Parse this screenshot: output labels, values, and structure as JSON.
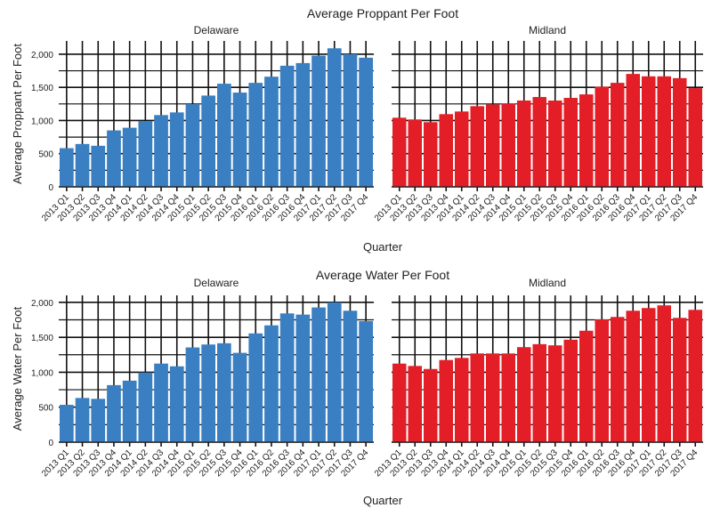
{
  "chart_data": [
    {
      "type": "bar",
      "title": "Average Proppant Per Foot",
      "xlabel": "Quarter",
      "ylabel": "Average Proppant Per Foot",
      "ylim": [
        0,
        2200
      ],
      "yticks": [
        0,
        500,
        1000,
        1500,
        2000
      ],
      "ytick_labels": [
        "0",
        "500",
        "1,000",
        "1,500",
        "2,000"
      ],
      "grid": true,
      "categories": [
        "2013 Q1",
        "2013 Q2",
        "2013 Q3",
        "2013 Q4",
        "2014 Q1",
        "2014 Q2",
        "2014 Q3",
        "2014 Q4",
        "2015 Q1",
        "2015 Q2",
        "2015 Q3",
        "2015 Q4",
        "2016 Q1",
        "2016 Q2",
        "2016 Q3",
        "2016 Q4",
        "2017 Q1",
        "2017 Q2",
        "2017 Q3",
        "2017 Q4"
      ],
      "panels": [
        {
          "name": "Delaware",
          "color": "#3a7fc1",
          "values": [
            583,
            646,
            619,
            851,
            891,
            993,
            1082,
            1122,
            1247,
            1376,
            1555,
            1421,
            1568,
            1661,
            1826,
            1866,
            1978,
            2089,
            2000,
            1947
          ]
        },
        {
          "name": "Midland",
          "color": "#e31e26",
          "values": [
            1042,
            1016,
            975,
            1096,
            1136,
            1216,
            1243,
            1256,
            1301,
            1354,
            1301,
            1341,
            1394,
            1510,
            1568,
            1702,
            1666,
            1666,
            1639,
            1488
          ]
        }
      ]
    },
    {
      "type": "bar",
      "title": "Average Water Per Foot",
      "xlabel": "Quarter",
      "ylabel": "Average Water Per Foot",
      "ylim": [
        0,
        2100
      ],
      "yticks": [
        0,
        500,
        1000,
        1500,
        2000
      ],
      "ytick_labels": [
        "0",
        "500",
        "1,000",
        "1,500",
        "2,000"
      ],
      "grid": true,
      "categories": [
        "2013 Q1",
        "2013 Q2",
        "2013 Q3",
        "2013 Q4",
        "2014 Q1",
        "2014 Q2",
        "2014 Q3",
        "2014 Q4",
        "2015 Q1",
        "2015 Q2",
        "2015 Q3",
        "2015 Q4",
        "2016 Q1",
        "2016 Q2",
        "2016 Q3",
        "2016 Q4",
        "2017 Q1",
        "2017 Q2",
        "2017 Q3",
        "2017 Q4"
      ],
      "panels": [
        {
          "name": "Delaware",
          "color": "#3a7fc1",
          "values": [
            534,
            632,
            620,
            816,
            880,
            996,
            1124,
            1085,
            1355,
            1397,
            1415,
            1278,
            1556,
            1671,
            1842,
            1825,
            1927,
            2000,
            1880,
            1731
          ]
        },
        {
          "name": "Midland",
          "color": "#e31e26",
          "values": [
            1124,
            1090,
            1047,
            1175,
            1205,
            1269,
            1269,
            1269,
            1359,
            1402,
            1385,
            1466,
            1594,
            1756,
            1791,
            1880,
            1919,
            1957,
            1778,
            1893
          ]
        }
      ]
    }
  ]
}
